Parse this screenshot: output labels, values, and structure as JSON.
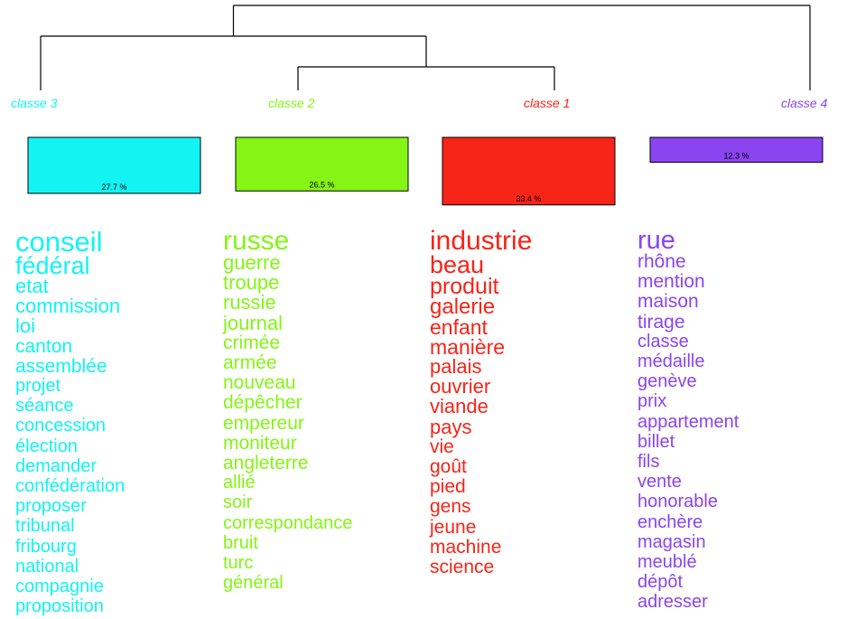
{
  "chart_data": {
    "type": "dendrogram-wordcloud",
    "colors": {
      "classe_1": "#f72418",
      "classe_2": "#84f514",
      "classe_3": "#12f3f3",
      "classe_4": "#8a44f0",
      "tree": "#000000"
    },
    "classes": [
      {
        "key": "classe_3",
        "label": "classe  3",
        "percent": 27.7,
        "percent_label": "27.7 %",
        "words": [
          {
            "text": "conseil",
            "size": 31
          },
          {
            "text": "fédéral",
            "size": 27
          },
          {
            "text": "etat",
            "size": 22
          },
          {
            "text": "commission",
            "size": 22
          },
          {
            "text": "loi",
            "size": 22
          },
          {
            "text": "canton",
            "size": 21
          },
          {
            "text": "assemblée",
            "size": 21
          },
          {
            "text": "projet",
            "size": 20
          },
          {
            "text": "séance",
            "size": 20
          },
          {
            "text": "concession",
            "size": 20
          },
          {
            "text": "élection",
            "size": 20
          },
          {
            "text": "demander",
            "size": 20
          },
          {
            "text": "confédération",
            "size": 20
          },
          {
            "text": "proposer",
            "size": 20
          },
          {
            "text": "tribunal",
            "size": 20
          },
          {
            "text": "fribourg",
            "size": 20
          },
          {
            "text": "national",
            "size": 20
          },
          {
            "text": "compagnie",
            "size": 20
          },
          {
            "text": "proposition",
            "size": 20
          }
        ]
      },
      {
        "key": "classe_2",
        "label": "classe  2",
        "percent": 26.5,
        "percent_label": "26.5 %",
        "words": [
          {
            "text": "russe",
            "size": 30
          },
          {
            "text": "guerre",
            "size": 22
          },
          {
            "text": "troupe",
            "size": 22
          },
          {
            "text": "russie",
            "size": 22
          },
          {
            "text": "journal",
            "size": 22
          },
          {
            "text": "crimée",
            "size": 21
          },
          {
            "text": "armée",
            "size": 21
          },
          {
            "text": "nouveau",
            "size": 21
          },
          {
            "text": "dépêcher",
            "size": 21
          },
          {
            "text": "empereur",
            "size": 21
          },
          {
            "text": "moniteur",
            "size": 21
          },
          {
            "text": "angleterre",
            "size": 21
          },
          {
            "text": "allié",
            "size": 20
          },
          {
            "text": "soir",
            "size": 20
          },
          {
            "text": "correspondance",
            "size": 20
          },
          {
            "text": "bruit",
            "size": 20
          },
          {
            "text": "turc",
            "size": 20
          },
          {
            "text": "général",
            "size": 20
          }
        ]
      },
      {
        "key": "classe_1",
        "label": "classe  1",
        "percent": 33.4,
        "percent_label": "33.4 %",
        "words": [
          {
            "text": "industrie",
            "size": 30
          },
          {
            "text": "beau",
            "size": 27
          },
          {
            "text": "produit",
            "size": 25
          },
          {
            "text": "galerie",
            "size": 24
          },
          {
            "text": "enfant",
            "size": 23
          },
          {
            "text": "manière",
            "size": 23
          },
          {
            "text": "palais",
            "size": 22
          },
          {
            "text": "ouvrier",
            "size": 22
          },
          {
            "text": "viande",
            "size": 22
          },
          {
            "text": "pays",
            "size": 22
          },
          {
            "text": "vie",
            "size": 21
          },
          {
            "text": "goût",
            "size": 21
          },
          {
            "text": "pied",
            "size": 21
          },
          {
            "text": "gens",
            "size": 21
          },
          {
            "text": "jeune",
            "size": 21
          },
          {
            "text": "machine",
            "size": 21
          },
          {
            "text": "science",
            "size": 21
          }
        ]
      },
      {
        "key": "classe_4",
        "label": "classe  4",
        "percent": 12.3,
        "percent_label": "12.3 %",
        "words": [
          {
            "text": "rue",
            "size": 29
          },
          {
            "text": "rhône",
            "size": 21
          },
          {
            "text": "mention",
            "size": 21
          },
          {
            "text": "maison",
            "size": 21
          },
          {
            "text": "tirage",
            "size": 21
          },
          {
            "text": "classe",
            "size": 20
          },
          {
            "text": "médaille",
            "size": 20
          },
          {
            "text": "genève",
            "size": 20
          },
          {
            "text": "prix",
            "size": 20
          },
          {
            "text": "appartement",
            "size": 20
          },
          {
            "text": "billet",
            "size": 20
          },
          {
            "text": "fils",
            "size": 20
          },
          {
            "text": "vente",
            "size": 20
          },
          {
            "text": "honorable",
            "size": 20
          },
          {
            "text": "enchère",
            "size": 20
          },
          {
            "text": "magasin",
            "size": 20
          },
          {
            "text": "meublé",
            "size": 20
          },
          {
            "text": "dépôt",
            "size": 20
          },
          {
            "text": "adresser",
            "size": 20
          }
        ]
      }
    ],
    "dendrogram": {
      "merges": [
        {
          "left": "classe_2",
          "right": "classe_1",
          "height": 1
        },
        {
          "left": "classe_3",
          "right": "merge_0",
          "height": 2
        },
        {
          "left": "merge_1",
          "right": "classe_4",
          "height": 3
        }
      ]
    }
  }
}
